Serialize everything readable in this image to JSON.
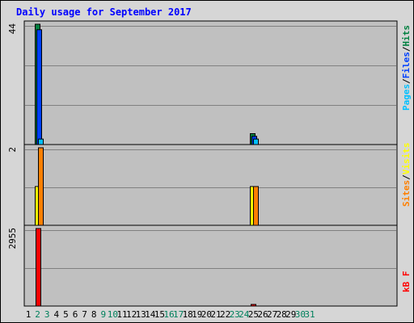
{
  "colors": {
    "background": "#D6D6D6",
    "plot": "#C0C0C0",
    "grid": "#808080",
    "title": "#0000FF",
    "hits": "#008040",
    "files": "#0040FF",
    "pages": "#00C0FF",
    "visits": "#FFFF00",
    "sites": "#FF8000",
    "kbytes": "#FF0000",
    "weekend_label": "#00805C",
    "weekday_label": "#000000"
  },
  "chart_data": {
    "type": "bar",
    "title": "Daily usage for September 2017",
    "days": [
      "1",
      "2",
      "3",
      "4",
      "5",
      "6",
      "7",
      "8",
      "9",
      "10",
      "11",
      "12",
      "13",
      "14",
      "15",
      "16",
      "17",
      "18",
      "19",
      "20",
      "21",
      "22",
      "23",
      "24",
      "25",
      "26",
      "27",
      "28",
      "29",
      "30",
      "31"
    ],
    "weekend_days": [
      "2",
      "3",
      "9",
      "10",
      "16",
      "17",
      "23",
      "24",
      "30",
      "31"
    ],
    "panels": [
      {
        "id": "hits-files-pages",
        "max_label": "44",
        "ymax": 44,
        "legend": [
          {
            "key": "pages",
            "label": "Pages"
          },
          {
            "key": "sep",
            "label": "/"
          },
          {
            "key": "files",
            "label": "Files"
          },
          {
            "key": "sep",
            "label": "/"
          },
          {
            "key": "hits",
            "label": "Hits"
          }
        ],
        "series": [
          {
            "key": "hits",
            "values": [
              0,
              44,
              0,
              0,
              0,
              0,
              0,
              0,
              0,
              0,
              0,
              0,
              0,
              0,
              0,
              0,
              0,
              0,
              0,
              0,
              0,
              0,
              0,
              0,
              4,
              0,
              0,
              0,
              0,
              0,
              0
            ]
          },
          {
            "key": "files",
            "values": [
              0,
              42,
              0,
              0,
              0,
              0,
              0,
              0,
              0,
              0,
              0,
              0,
              0,
              0,
              0,
              0,
              0,
              0,
              0,
              0,
              0,
              0,
              0,
              0,
              3,
              0,
              0,
              0,
              0,
              0,
              0
            ]
          },
          {
            "key": "pages",
            "values": [
              0,
              2,
              0,
              0,
              0,
              0,
              0,
              0,
              0,
              0,
              0,
              0,
              0,
              0,
              0,
              0,
              0,
              0,
              0,
              0,
              0,
              0,
              0,
              0,
              2,
              0,
              0,
              0,
              0,
              0,
              0
            ]
          }
        ]
      },
      {
        "id": "sites-visits",
        "max_label": "2",
        "ymax": 2,
        "legend": [
          {
            "key": "sites",
            "label": "Sites"
          },
          {
            "key": "sep",
            "label": "/"
          },
          {
            "key": "visits",
            "label": "Visits"
          }
        ],
        "series": [
          {
            "key": "visits",
            "values": [
              0,
              1,
              0,
              0,
              0,
              0,
              0,
              0,
              0,
              0,
              0,
              0,
              0,
              0,
              0,
              0,
              0,
              0,
              0,
              0,
              0,
              0,
              0,
              0,
              1,
              0,
              0,
              0,
              0,
              0,
              0
            ]
          },
          {
            "key": "sites",
            "values": [
              0,
              2,
              0,
              0,
              0,
              0,
              0,
              0,
              0,
              0,
              0,
              0,
              0,
              0,
              0,
              0,
              0,
              0,
              0,
              0,
              0,
              0,
              0,
              0,
              1,
              0,
              0,
              0,
              0,
              0,
              0
            ]
          }
        ]
      },
      {
        "id": "kbytes",
        "max_label": "2955",
        "ymax": 2955,
        "legend": [
          {
            "key": "kbytes",
            "label": "kB F"
          }
        ],
        "series": [
          {
            "key": "kbytes",
            "values": [
              0,
              2955,
              0,
              0,
              0,
              0,
              0,
              0,
              0,
              0,
              0,
              0,
              0,
              0,
              0,
              0,
              0,
              0,
              0,
              0,
              0,
              0,
              0,
              0,
              20,
              0,
              0,
              0,
              0,
              0,
              0
            ]
          }
        ]
      }
    ]
  }
}
